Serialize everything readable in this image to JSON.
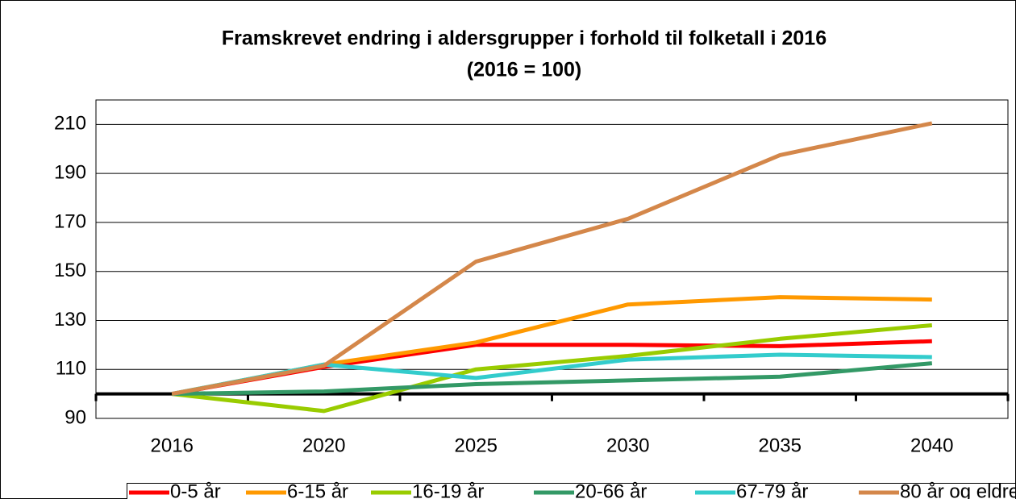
{
  "chart_data": {
    "type": "line",
    "title": "Framskrevet endring i aldersgrupper i forhold til folketall i 2016",
    "subtitle": "(2016 = 100)",
    "categories": [
      "2016",
      "2020",
      "2025",
      "2030",
      "2035",
      "2040"
    ],
    "series": [
      {
        "name": "0-5 år",
        "color": "#ff0000",
        "values": [
          100,
          111,
          120,
          120,
          119.5,
          121.5
        ]
      },
      {
        "name": "6-15 år",
        "color": "#ff9900",
        "values": [
          100,
          112,
          121,
          136.5,
          139.5,
          138.5
        ]
      },
      {
        "name": "16-19 år",
        "color": "#99cc00",
        "values": [
          100,
          93,
          110,
          115.5,
          122.5,
          128
        ]
      },
      {
        "name": "20-66 år",
        "color": "#339966",
        "values": [
          100,
          101,
          104,
          105.5,
          107,
          112.5
        ]
      },
      {
        "name": "67-79 år",
        "color": "#33cccc",
        "values": [
          100,
          112,
          106.5,
          114,
          116,
          115
        ]
      },
      {
        "name": "80 år og eldre",
        "color": "#d4874a",
        "values": [
          100,
          111.5,
          154,
          171.5,
          197.5,
          210.5
        ]
      }
    ],
    "ylim": [
      90,
      220
    ],
    "yticks": [
      90,
      110,
      130,
      150,
      170,
      190,
      210
    ],
    "grid": true,
    "x_axis_at": 100,
    "legend": "bottom"
  }
}
